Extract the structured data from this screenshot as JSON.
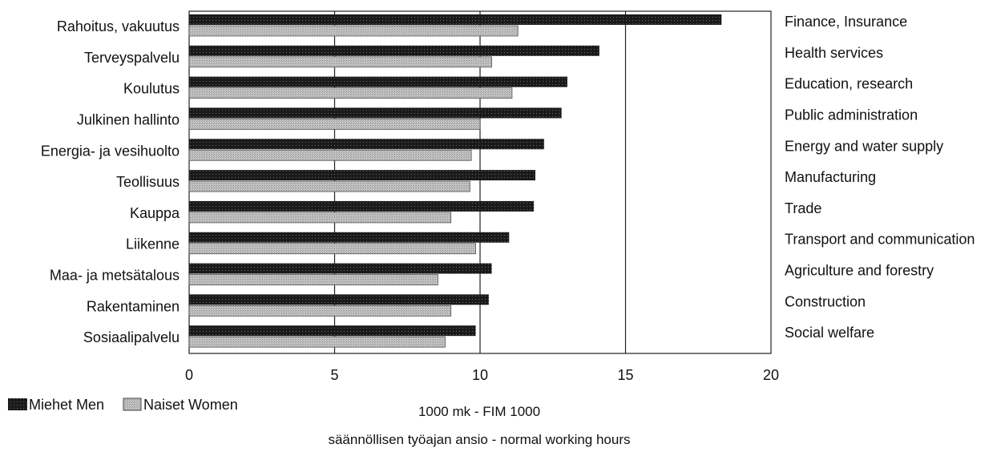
{
  "chart_data": {
    "type": "bar",
    "orientation": "horizontal",
    "categories": [
      "Rahoitus, vakuutus",
      "Terveyspalvelu",
      "Koulutus",
      "Julkinen hallinto",
      "Energia- ja vesihuolto",
      "Teollisuus",
      "Kauppa",
      "Liikenne",
      "Maa- ja metsätalous",
      "Rakentaminen",
      "Sosiaalipalvelu"
    ],
    "categories_en": [
      "Finance, Insurance",
      "Health services",
      "Education, research",
      "Public administration",
      "Energy and water supply",
      "Manufacturing",
      "Trade",
      "Transport and communication",
      "Agriculture and forestry",
      "Construction",
      "Social welfare"
    ],
    "series": [
      {
        "name": "Miehet Men",
        "values": [
          18.3,
          14.1,
          13.0,
          12.8,
          12.2,
          11.9,
          11.85,
          11.0,
          10.4,
          10.3,
          9.85
        ],
        "color": "#1a1a1a"
      },
      {
        "name": "Naiset Women",
        "values": [
          11.3,
          10.4,
          11.1,
          10.0,
          9.7,
          9.65,
          9.0,
          9.85,
          8.55,
          9.0,
          8.8
        ],
        "color": "#b8b8b8"
      }
    ],
    "xlim": [
      0,
      20
    ],
    "xticks": [
      "0",
      "5",
      "10",
      "15",
      "20"
    ],
    "xlabel": "1000 mk - FIM 1000",
    "subtitle": "säännöllisen työajan ansio - normal working hours",
    "grid": "vertical",
    "legend": "bottom-left"
  }
}
